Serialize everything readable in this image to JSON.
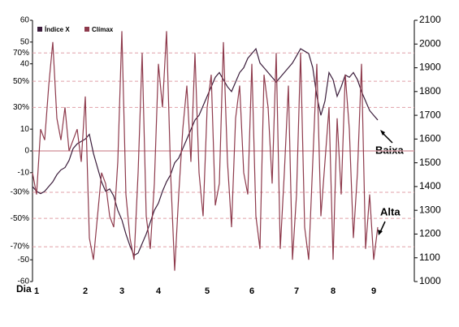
{
  "chart_data": {
    "type": "line",
    "x_label": "Dia",
    "xlim": [
      0,
      94
    ],
    "xticks": [
      {
        "value": 1,
        "label": "1"
      },
      {
        "value": 13,
        "label": "2"
      },
      {
        "value": 22,
        "label": "3"
      },
      {
        "value": 31,
        "label": "4"
      },
      {
        "value": 43,
        "label": "5"
      },
      {
        "value": 54,
        "label": "6"
      },
      {
        "value": 65,
        "label": "7"
      },
      {
        "value": 74,
        "label": "8"
      },
      {
        "value": 84,
        "label": "9"
      }
    ],
    "ylim": [
      -60,
      60
    ],
    "yticks": [
      -60,
      -50,
      -10,
      0,
      10,
      40,
      50,
      60
    ],
    "levels": [
      {
        "value": 45,
        "label": "70%"
      },
      {
        "value": 32,
        "label": "50%"
      },
      {
        "value": 20,
        "label": "30%"
      },
      {
        "value": -19,
        "label": "-30%"
      },
      {
        "value": -31,
        "label": "-50%"
      },
      {
        "value": -44,
        "label": "-70%"
      }
    ],
    "y2lim": [
      1000,
      2100
    ],
    "y2ticks": [
      1000,
      1100,
      1200,
      1300,
      1400,
      1500,
      1600,
      1700,
      1800,
      1900,
      2000,
      2100
    ],
    "series": [
      {
        "name": "Índice X",
        "color": "#3b1d3b",
        "axis": "y2",
        "values": [
          1400,
          1380,
          1370,
          1380,
          1400,
          1420,
          1450,
          1470,
          1480,
          1510,
          1560,
          1580,
          1590,
          1600,
          1620,
          1540,
          1480,
          1420,
          1380,
          1390,
          1360,
          1300,
          1260,
          1200,
          1150,
          1110,
          1120,
          1160,
          1200,
          1250,
          1300,
          1330,
          1380,
          1420,
          1450,
          1500,
          1520,
          1560,
          1600,
          1640,
          1680,
          1700,
          1740,
          1780,
          1820,
          1860,
          1880,
          1850,
          1820,
          1800,
          1840,
          1880,
          1900,
          1940,
          1960,
          1980,
          1920,
          1900,
          1880,
          1860,
          1840,
          1860,
          1880,
          1900,
          1920,
          1950,
          1980,
          1970,
          1960,
          1900,
          1780,
          1700,
          1760,
          1880,
          1850,
          1780,
          1820,
          1870,
          1860,
          1880,
          1850,
          1800,
          1760,
          1720,
          1700,
          1680
        ]
      },
      {
        "name": "Clímax",
        "color": "#8e3a4c",
        "values": [
          -10,
          -20,
          10,
          5,
          30,
          50,
          15,
          5,
          20,
          0,
          5,
          10,
          -5,
          25,
          -40,
          -50,
          -30,
          -10,
          -15,
          -30,
          -35,
          -5,
          55,
          -20,
          -40,
          -50,
          -10,
          45,
          -30,
          -45,
          -15,
          40,
          20,
          55,
          -10,
          -55,
          -20,
          10,
          30,
          -5,
          45,
          -10,
          -30,
          20,
          35,
          -25,
          -15,
          50,
          -5,
          -35,
          15,
          30,
          -10,
          -20,
          40,
          -30,
          -45,
          35,
          20,
          -15,
          45,
          -45,
          -10,
          30,
          -50,
          -20,
          45,
          -35,
          -50,
          -5,
          40,
          -30,
          -5,
          20,
          -50,
          15,
          -20,
          35,
          10,
          -40,
          -10,
          40,
          -45,
          -20,
          -50,
          -35
        ]
      }
    ],
    "annotations": [
      "Baixa",
      "Alta"
    ]
  }
}
